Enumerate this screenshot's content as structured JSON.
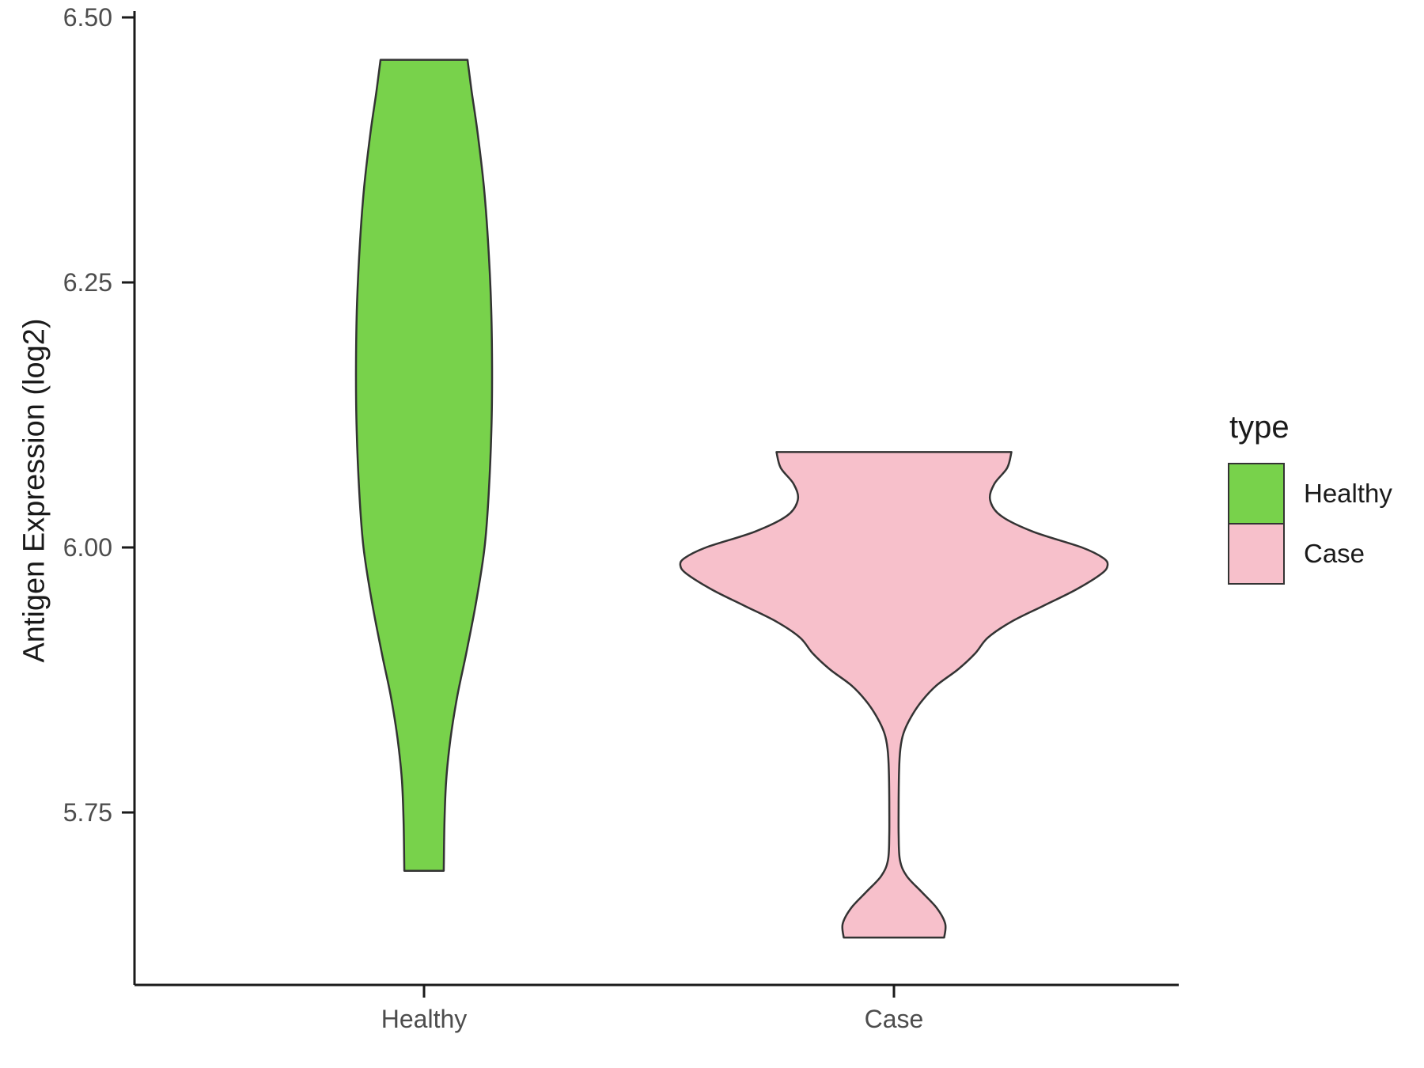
{
  "chart_data": {
    "type": "violin",
    "title": "",
    "xlabel": "",
    "ylabel": "Antigen Expression (log2)",
    "categories": [
      "Healthy",
      "Case"
    ],
    "y_ticks": [
      6.5,
      6.25,
      6.0,
      5.75
    ],
    "y_tick_labels": [
      "6.50",
      "6.25",
      "6.00",
      "5.75"
    ],
    "ylim_visible": [
      5.58,
      6.51
    ],
    "grid": "off",
    "plot_bg": "#ffffff",
    "axis_color": "#1a1a1a",
    "tick_label_color": "#4d4d4d",
    "stroke_color": "#333333",
    "legend": {
      "title": "type",
      "position": "right",
      "entries": [
        {
          "label": "Healthy",
          "color": "#78d24b"
        },
        {
          "label": "Case",
          "color": "#f7c0cb"
        }
      ]
    },
    "series": [
      {
        "name": "Healthy",
        "color": "#78d24b",
        "value_range": [
          5.695,
          6.46
        ],
        "profile": [
          [
            6.46,
            0.64
          ],
          [
            6.43,
            0.7
          ],
          [
            6.39,
            0.79
          ],
          [
            6.34,
            0.88
          ],
          [
            6.29,
            0.94
          ],
          [
            6.23,
            0.985
          ],
          [
            6.17,
            1.0
          ],
          [
            6.11,
            0.99
          ],
          [
            6.05,
            0.95
          ],
          [
            6.0,
            0.89
          ],
          [
            5.95,
            0.77
          ],
          [
            5.9,
            0.62
          ],
          [
            5.86,
            0.49
          ],
          [
            5.82,
            0.39
          ],
          [
            5.78,
            0.325
          ],
          [
            5.74,
            0.3
          ],
          [
            5.695,
            0.29
          ]
        ]
      },
      {
        "name": "Case",
        "color": "#f7c0cb",
        "value_range": [
          5.632,
          6.09
        ],
        "profile": [
          [
            6.09,
            0.55
          ],
          [
            6.075,
            0.53
          ],
          [
            6.06,
            0.47
          ],
          [
            6.045,
            0.45
          ],
          [
            6.03,
            0.5
          ],
          [
            6.015,
            0.65
          ],
          [
            6.0,
            0.88
          ],
          [
            5.99,
            0.98
          ],
          [
            5.983,
            1.0
          ],
          [
            5.975,
            0.97
          ],
          [
            5.96,
            0.85
          ],
          [
            5.945,
            0.7
          ],
          [
            5.93,
            0.55
          ],
          [
            5.915,
            0.44
          ],
          [
            5.9,
            0.38
          ],
          [
            5.885,
            0.3
          ],
          [
            5.87,
            0.2
          ],
          [
            5.855,
            0.13
          ],
          [
            5.84,
            0.08
          ],
          [
            5.825,
            0.045
          ],
          [
            5.81,
            0.03
          ],
          [
            5.79,
            0.024
          ],
          [
            5.76,
            0.022
          ],
          [
            5.73,
            0.022
          ],
          [
            5.705,
            0.028
          ],
          [
            5.69,
            0.06
          ],
          [
            5.675,
            0.13
          ],
          [
            5.66,
            0.2
          ],
          [
            5.645,
            0.24
          ],
          [
            5.632,
            0.235
          ]
        ]
      }
    ]
  }
}
